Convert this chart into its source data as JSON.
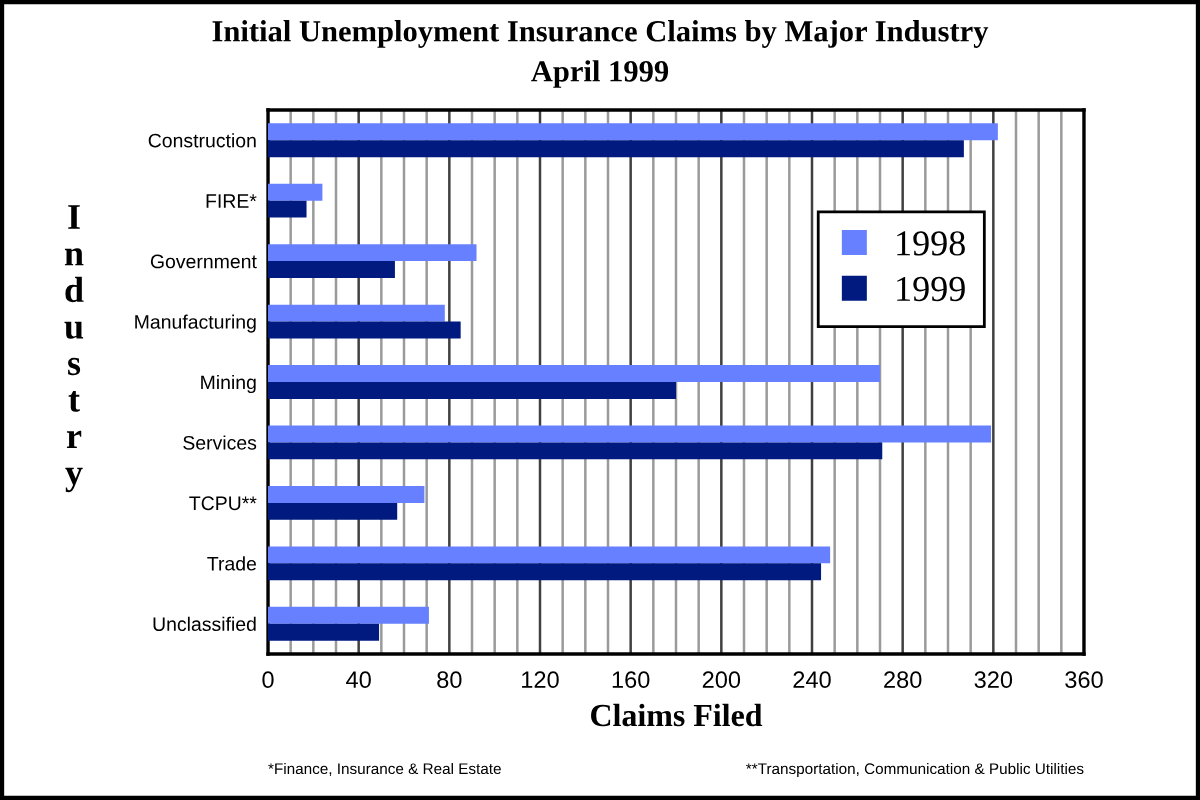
{
  "chart_data": {
    "type": "bar",
    "orientation": "horizontal",
    "title": "Initial Unemployment Insurance Claims by Major Industry",
    "subtitle": "April 1999",
    "xlabel": "Claims Filed",
    "ylabel": "Industry",
    "categories": [
      "Construction",
      "FIRE*",
      "Government",
      "Manufacturing",
      "Mining",
      "Services",
      "TCPU**",
      "Trade",
      "Unclassified"
    ],
    "series": [
      {
        "name": "1998",
        "color": "#6680ff",
        "values": [
          322,
          24,
          92,
          78,
          270,
          319,
          69,
          248,
          71
        ]
      },
      {
        "name": "1999",
        "color": "#001a80",
        "values": [
          307,
          17,
          56,
          85,
          180,
          271,
          57,
          244,
          49
        ]
      }
    ],
    "xlim": [
      0,
      360
    ],
    "xticks": [
      0,
      {
        "value": 10,
        "label": null
      },
      {
        "value": 20,
        "label": null
      },
      {
        "value": 30,
        "label": null
      },
      40,
      {
        "value": 50,
        "label": null
      },
      {
        "value": 60,
        "label": null
      },
      {
        "value": 70,
        "label": null
      },
      80,
      {
        "value": 90,
        "label": null
      },
      {
        "value": 100,
        "label": null
      },
      {
        "value": 110,
        "label": null
      },
      120,
      {
        "value": 130,
        "label": null
      },
      {
        "value": 140,
        "label": null
      },
      {
        "value": 150,
        "label": null
      },
      160,
      {
        "value": 170,
        "label": null
      },
      {
        "value": 180,
        "label": null
      },
      {
        "value": 190,
        "label": null
      },
      200,
      {
        "value": 210,
        "label": null
      },
      {
        "value": 220,
        "label": null
      },
      {
        "value": 230,
        "label": null
      },
      240,
      {
        "value": 250,
        "label": null
      },
      {
        "value": 260,
        "label": null
      },
      {
        "value": 270,
        "label": null
      },
      280,
      {
        "value": 290,
        "label": null
      },
      {
        "value": 300,
        "label": null
      },
      {
        "value": 310,
        "label": null
      },
      320,
      {
        "value": 330,
        "label": null
      },
      {
        "value": 340,
        "label": null
      },
      {
        "value": 350,
        "label": null
      },
      360
    ],
    "grid": "x",
    "legend": "top right",
    "annotations": [
      "*Finance, Insurance & Real Estate",
      "**Transportation, Communication & Public Utilities"
    ]
  }
}
